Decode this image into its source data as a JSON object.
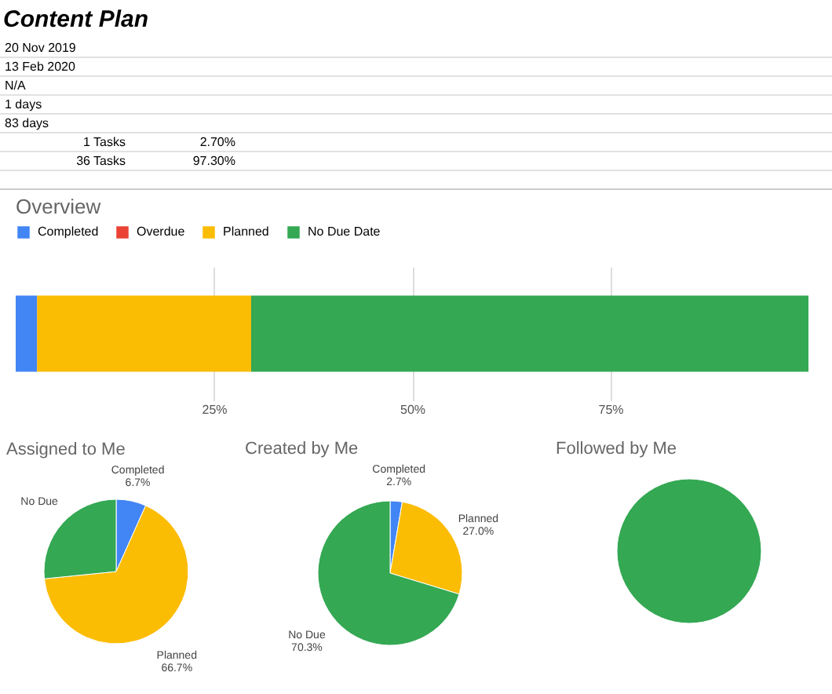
{
  "chart_data": [
    {
      "type": "other",
      "title": "Content Plan",
      "annotations": [
        "20 Nov 2019",
        "13 Feb 2020",
        "N/A",
        "1 days",
        "83 days",
        "1 Tasks",
        "2.70%",
        "36 Tasks",
        "97.30%"
      ]
    },
    {
      "type": "bar",
      "title": "Overview",
      "orientation": "horizontal",
      "stacked": true,
      "categories": [
        null
      ],
      "legend": "top",
      "grid": "x",
      "xlim": [
        0,
        100
      ],
      "xticks": [
        {
          "value": 25,
          "label": "25%"
        },
        {
          "value": 50,
          "label": "50%"
        },
        {
          "value": 75,
          "label": "75%"
        }
      ],
      "series": [
        {
          "name": "Completed",
          "color": "#4285f4",
          "values": [
            2.7
          ]
        },
        {
          "name": "Overdue",
          "color": "#ea4335",
          "values": [
            0
          ]
        },
        {
          "name": "Planned",
          "color": "#fbbc04",
          "values": [
            27.0
          ]
        },
        {
          "name": "No Due Date",
          "color": "#34a853",
          "values": [
            70.3
          ]
        }
      ]
    },
    {
      "type": "pie",
      "title": "Assigned to Me",
      "categories": [
        "Completed",
        "Planned",
        "No Due"
      ],
      "values": [
        6.7,
        66.7,
        26.6
      ],
      "colors": [
        "#4285f4",
        "#fbbc04",
        "#34a853"
      ],
      "value_labels": [
        "6.7%",
        "66.7%",
        null
      ]
    },
    {
      "type": "pie",
      "title": "Created by Me",
      "categories": [
        "Completed",
        "Planned",
        "No Due"
      ],
      "values": [
        2.7,
        27.0,
        70.3
      ],
      "colors": [
        "#4285f4",
        "#fbbc04",
        "#34a853"
      ],
      "value_labels": [
        "2.7%",
        "27.0%",
        "70.3%"
      ]
    },
    {
      "type": "pie",
      "title": "Followed by Me",
      "categories": [
        null
      ],
      "values": [
        100
      ],
      "colors": [
        "#34a853"
      ]
    }
  ]
}
